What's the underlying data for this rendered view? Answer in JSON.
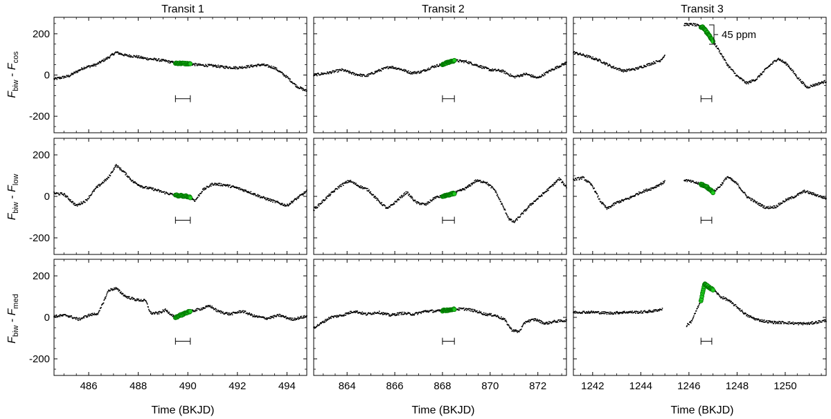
{
  "chart_data": {
    "type": "scatter",
    "grid": "off",
    "columns": [
      {
        "title": "Transit 1",
        "xlim": [
          484.6,
          494.8
        ],
        "xticks": [
          486,
          488,
          490,
          492,
          494
        ],
        "xlabel": "Time (BKJD)"
      },
      {
        "title": "Transit 2",
        "xlim": [
          862.6,
          873.2
        ],
        "xticks": [
          864,
          866,
          868,
          870,
          872
        ],
        "xlabel": "Time (BKJD)"
      },
      {
        "title": "Transit 3",
        "xlim": [
          1241.2,
          1251.7
        ],
        "xticks": [
          1242,
          1244,
          1246,
          1248,
          1250
        ],
        "xlabel": "Time (BKJD)"
      }
    ],
    "rows": [
      {
        "ylabel_base": "F",
        "ylabel_sub1": "biw",
        "ylabel_mid": " - ",
        "ylabel_sub2": "cos"
      },
      {
        "ylabel_base": "F",
        "ylabel_sub1": "biw",
        "ylabel_mid": " - ",
        "ylabel_sub2": "low"
      },
      {
        "ylabel_base": "F",
        "ylabel_sub1": "biw",
        "ylabel_mid": " - ",
        "ylabel_sub2": "med"
      }
    ],
    "ylim": [
      -280,
      280
    ],
    "yticks": [
      -200,
      0,
      200
    ],
    "annotation": "45 ppm",
    "colors": {
      "data": "#000000",
      "transit_fill": "#22cc22",
      "transit_edge": "#007700"
    },
    "panels": [
      {
        "row": 0,
        "col": 0,
        "transit": [
          489.5,
          490.1
        ],
        "bracket": [
          489.5,
          490.1
        ],
        "bracket_y": -115,
        "curve": [
          [
            484.6,
            -20
          ],
          [
            485.2,
            -5
          ],
          [
            485.8,
            35
          ],
          [
            486.3,
            50
          ],
          [
            486.8,
            85
          ],
          [
            487.1,
            110
          ],
          [
            487.5,
            95
          ],
          [
            487.9,
            90
          ],
          [
            488.3,
            80
          ],
          [
            488.7,
            75
          ],
          [
            489.1,
            68
          ],
          [
            489.5,
            58
          ],
          [
            490.0,
            55
          ],
          [
            490.5,
            48
          ],
          [
            491.0,
            45
          ],
          [
            491.5,
            38
          ],
          [
            492.0,
            35
          ],
          [
            492.5,
            42
          ],
          [
            493.0,
            50
          ],
          [
            493.5,
            35
          ],
          [
            494.0,
            -10
          ],
          [
            494.4,
            -55
          ],
          [
            494.8,
            -78
          ]
        ]
      },
      {
        "row": 0,
        "col": 1,
        "transit": [
          868.0,
          868.5
        ],
        "bracket": [
          868.0,
          868.5
        ],
        "bracket_y": -115,
        "curve": [
          [
            862.6,
            0
          ],
          [
            863.2,
            10
          ],
          [
            863.8,
            25
          ],
          [
            864.3,
            5
          ],
          [
            864.8,
            -5
          ],
          [
            865.3,
            20
          ],
          [
            865.8,
            40
          ],
          [
            866.2,
            30
          ],
          [
            866.7,
            10
          ],
          [
            867.1,
            15
          ],
          [
            867.6,
            40
          ],
          [
            868.0,
            52
          ],
          [
            868.5,
            70
          ],
          [
            869.0,
            65
          ],
          [
            869.5,
            45
          ],
          [
            870.0,
            25
          ],
          [
            870.5,
            20
          ],
          [
            871.0,
            -10
          ],
          [
            871.5,
            5
          ],
          [
            872.0,
            -15
          ],
          [
            872.5,
            20
          ],
          [
            873.2,
            60
          ]
        ]
      },
      {
        "row": 0,
        "col": 2,
        "transit": [
          1246.5,
          1247.0
        ],
        "bracket": [
          1246.5,
          1246.95
        ],
        "bracket_y": -115,
        "curve": [
          [
            1241.2,
            110
          ],
          [
            1241.8,
            90
          ],
          [
            1242.3,
            70
          ],
          [
            1242.8,
            40
          ],
          [
            1243.3,
            20
          ],
          [
            1243.8,
            30
          ],
          [
            1244.3,
            50
          ],
          [
            1244.8,
            70
          ],
          [
            1245.0,
            95
          ],
          null,
          [
            1245.8,
            245
          ],
          [
            1246.2,
            245
          ],
          [
            1246.6,
            230
          ],
          [
            1247.0,
            165
          ],
          [
            1247.3,
            110
          ],
          [
            1247.6,
            50
          ],
          [
            1248.0,
            -5
          ],
          [
            1248.4,
            -40
          ],
          [
            1248.8,
            -20
          ],
          [
            1249.3,
            40
          ],
          [
            1249.7,
            80
          ],
          [
            1250.1,
            50
          ],
          [
            1250.5,
            -10
          ],
          [
            1250.9,
            -60
          ],
          [
            1251.3,
            -45
          ],
          [
            1251.7,
            -30
          ]
        ]
      },
      {
        "row": 1,
        "col": 0,
        "transit": [
          489.5,
          490.1
        ],
        "bracket": [
          489.5,
          490.1
        ],
        "bracket_y": -115,
        "curve": [
          [
            484.6,
            15
          ],
          [
            485.0,
            10
          ],
          [
            485.5,
            -45
          ],
          [
            485.9,
            -20
          ],
          [
            486.3,
            40
          ],
          [
            486.8,
            90
          ],
          [
            487.1,
            150
          ],
          [
            487.4,
            120
          ],
          [
            487.8,
            70
          ],
          [
            488.2,
            45
          ],
          [
            488.6,
            35
          ],
          [
            489.0,
            20
          ],
          [
            489.5,
            5
          ],
          [
            490.0,
            0
          ],
          [
            490.3,
            -20
          ],
          [
            490.6,
            30
          ],
          [
            491.0,
            60
          ],
          [
            491.5,
            55
          ],
          [
            492.0,
            40
          ],
          [
            492.5,
            20
          ],
          [
            493.0,
            -5
          ],
          [
            493.5,
            -25
          ],
          [
            494.0,
            -45
          ],
          [
            494.8,
            25
          ]
        ]
      },
      {
        "row": 1,
        "col": 1,
        "transit": [
          868.0,
          868.5
        ],
        "bracket": [
          868.0,
          868.5
        ],
        "bracket_y": -115,
        "curve": [
          [
            862.6,
            -65
          ],
          [
            863.2,
            0
          ],
          [
            863.7,
            50
          ],
          [
            864.1,
            75
          ],
          [
            864.5,
            50
          ],
          [
            864.9,
            30
          ],
          [
            865.3,
            -20
          ],
          [
            865.7,
            -60
          ],
          [
            866.1,
            -20
          ],
          [
            866.5,
            20
          ],
          [
            866.9,
            -30
          ],
          [
            867.3,
            -40
          ],
          [
            867.7,
            -5
          ],
          [
            868.0,
            0
          ],
          [
            868.5,
            15
          ],
          [
            869.0,
            40
          ],
          [
            869.4,
            75
          ],
          [
            869.8,
            70
          ],
          [
            870.2,
            30
          ],
          [
            870.5,
            -40
          ],
          [
            870.8,
            -110
          ],
          [
            871.0,
            -125
          ],
          [
            871.3,
            -90
          ],
          [
            871.7,
            -40
          ],
          [
            872.1,
            0
          ],
          [
            872.5,
            40
          ],
          [
            872.9,
            85
          ],
          [
            873.2,
            45
          ]
        ]
      },
      {
        "row": 1,
        "col": 2,
        "transit": [
          1246.5,
          1247.0
        ],
        "bracket": [
          1246.5,
          1246.95
        ],
        "bracket_y": -115,
        "curve": [
          [
            1241.2,
            80
          ],
          [
            1241.6,
            90
          ],
          [
            1242.0,
            50
          ],
          [
            1242.3,
            -20
          ],
          [
            1242.6,
            -60
          ],
          [
            1243.0,
            -30
          ],
          [
            1243.5,
            -10
          ],
          [
            1244.0,
            20
          ],
          [
            1244.5,
            40
          ],
          [
            1245.0,
            70
          ],
          null,
          [
            1245.8,
            80
          ],
          [
            1246.3,
            65
          ],
          [
            1246.7,
            50
          ],
          [
            1247.0,
            20
          ],
          [
            1247.3,
            50
          ],
          [
            1247.6,
            95
          ],
          [
            1248.0,
            60
          ],
          [
            1248.4,
            0
          ],
          [
            1248.8,
            -30
          ],
          [
            1249.2,
            -55
          ],
          [
            1249.6,
            -50
          ],
          [
            1250.0,
            -20
          ],
          [
            1250.4,
            0
          ],
          [
            1250.8,
            25
          ],
          [
            1251.2,
            10
          ],
          [
            1251.7,
            -10
          ]
        ]
      },
      {
        "row": 2,
        "col": 0,
        "transit": [
          489.5,
          490.1
        ],
        "bracket": [
          489.5,
          490.1
        ],
        "bracket_y": -115,
        "curve": [
          [
            484.6,
            5
          ],
          [
            485.1,
            10
          ],
          [
            485.6,
            -10
          ],
          [
            486.0,
            10
          ],
          [
            486.4,
            20
          ],
          [
            486.8,
            130
          ],
          [
            487.1,
            140
          ],
          [
            487.5,
            100
          ],
          [
            487.9,
            85
          ],
          [
            488.3,
            80
          ],
          [
            488.5,
            20
          ],
          [
            488.8,
            20
          ],
          [
            489.1,
            35
          ],
          [
            489.5,
            0
          ],
          [
            490.0,
            25
          ],
          [
            490.5,
            40
          ],
          [
            490.9,
            55
          ],
          [
            491.2,
            30
          ],
          [
            491.7,
            15
          ],
          [
            492.2,
            30
          ],
          [
            492.7,
            5
          ],
          [
            493.2,
            -5
          ],
          [
            493.7,
            10
          ],
          [
            494.2,
            -10
          ],
          [
            494.8,
            5
          ]
        ]
      },
      {
        "row": 2,
        "col": 1,
        "transit": [
          868.0,
          868.5
        ],
        "bracket": [
          868.0,
          868.5
        ],
        "bracket_y": -115,
        "curve": [
          [
            862.6,
            -50
          ],
          [
            862.9,
            -30
          ],
          [
            863.3,
            0
          ],
          [
            863.8,
            10
          ],
          [
            864.3,
            30
          ],
          [
            864.8,
            15
          ],
          [
            865.3,
            25
          ],
          [
            865.8,
            10
          ],
          [
            866.3,
            20
          ],
          [
            866.8,
            15
          ],
          [
            867.3,
            30
          ],
          [
            867.8,
            30
          ],
          [
            868.2,
            35
          ],
          [
            868.6,
            40
          ],
          [
            869.0,
            40
          ],
          [
            869.4,
            30
          ],
          [
            869.8,
            15
          ],
          [
            870.2,
            10
          ],
          [
            870.6,
            -10
          ],
          [
            870.9,
            -60
          ],
          [
            871.2,
            -70
          ],
          [
            871.5,
            -20
          ],
          [
            871.9,
            -10
          ],
          [
            872.3,
            -30
          ],
          [
            872.7,
            -20
          ],
          [
            873.2,
            -15
          ]
        ]
      },
      {
        "row": 2,
        "col": 2,
        "transit": [
          1246.5,
          1247.0
        ],
        "bracket": [
          1246.5,
          1246.95
        ],
        "bracket_y": -115,
        "curve": [
          [
            1241.2,
            25
          ],
          [
            1242.0,
            25
          ],
          [
            1242.7,
            20
          ],
          [
            1243.4,
            25
          ],
          [
            1244.0,
            25
          ],
          [
            1244.5,
            30
          ],
          [
            1244.9,
            40
          ],
          null,
          [
            1245.9,
            -40
          ],
          [
            1246.1,
            -20
          ],
          [
            1246.3,
            30
          ],
          [
            1246.5,
            80
          ],
          [
            1246.65,
            160
          ],
          [
            1246.9,
            140
          ],
          [
            1247.1,
            125
          ],
          [
            1247.3,
            100
          ],
          [
            1247.6,
            85
          ],
          [
            1248.0,
            50
          ],
          [
            1248.4,
            10
          ],
          [
            1248.8,
            -10
          ],
          [
            1249.2,
            -20
          ],
          [
            1249.6,
            -25
          ],
          [
            1250.0,
            -25
          ],
          [
            1250.5,
            -30
          ],
          [
            1251.0,
            -30
          ],
          [
            1251.7,
            -15
          ]
        ]
      }
    ]
  }
}
